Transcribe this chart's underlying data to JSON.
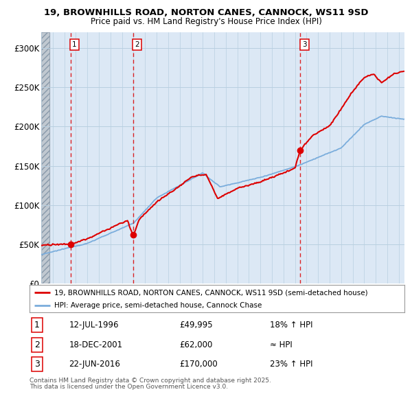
{
  "title_line1": "19, BROWNHILLS ROAD, NORTON CANES, CANNOCK, WS11 9SD",
  "title_line2": "Price paid vs. HM Land Registry's House Price Index (HPI)",
  "ylim": [
    0,
    320000
  ],
  "yticks": [
    0,
    50000,
    100000,
    150000,
    200000,
    250000,
    300000
  ],
  "ytick_labels": [
    "£0",
    "£50K",
    "£100K",
    "£150K",
    "£200K",
    "£250K",
    "£300K"
  ],
  "xstart_year": 1994,
  "xend_year": 2025,
  "sale_dates": [
    1996.53,
    2001.96,
    2016.47
  ],
  "sale_prices": [
    49995,
    62000,
    170000
  ],
  "sale_labels": [
    "1",
    "2",
    "3"
  ],
  "sale_date_labels": [
    "12-JUL-1996",
    "18-DEC-2001",
    "22-JUN-2016"
  ],
  "sale_price_labels": [
    "£49,995",
    "£62,000",
    "£170,000"
  ],
  "sale_hpi_labels": [
    "18% ↑ HPI",
    "≈ HPI",
    "23% ↑ HPI"
  ],
  "red_line_color": "#dd0000",
  "blue_line_color": "#7aaddc",
  "legend_label_red": "19, BROWNHILLS ROAD, NORTON CANES, CANNOCK, WS11 9SD (semi-detached house)",
  "legend_label_blue": "HPI: Average price, semi-detached house, Cannock Chase",
  "footnote1": "Contains HM Land Registry data © Crown copyright and database right 2025.",
  "footnote2": "This data is licensed under the Open Government Licence v3.0.",
  "background_color": "#dce8f5",
  "grid_color": "#b8cfe0"
}
